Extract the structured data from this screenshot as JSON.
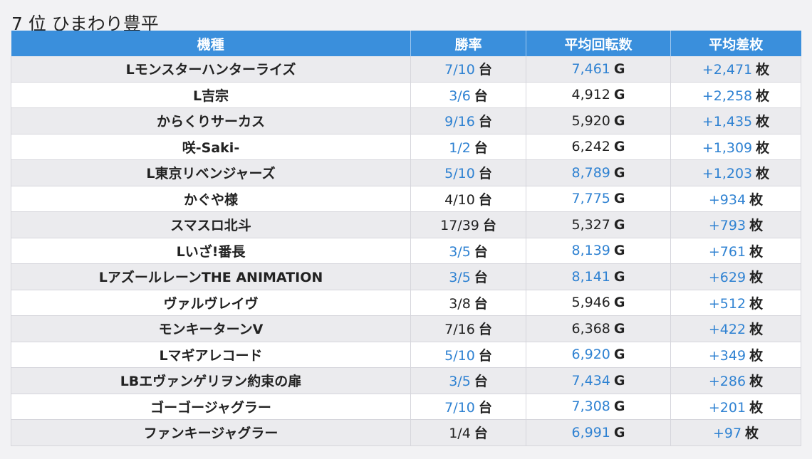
{
  "title": "7 位 ひまわり豊平",
  "headers": {
    "machine": "機種",
    "win_rate": "勝率",
    "avg_spins": "平均回転数",
    "avg_diff": "平均差枚"
  },
  "units": {
    "dai": "台",
    "games": "G",
    "coins": "枚"
  },
  "colors": {
    "header_bg": "#3a8fdc",
    "highlight": "#2f82d2",
    "row_alt": "#ebebee"
  },
  "rows": [
    {
      "machine": "Lモンスターハンターライズ",
      "win_rate": "7/10",
      "win_hi": true,
      "avg_spins": "7,461",
      "spins_hi": true,
      "avg_diff": "+2,471"
    },
    {
      "machine": "L吉宗",
      "win_rate": "3/6",
      "win_hi": true,
      "avg_spins": "4,912",
      "spins_hi": false,
      "avg_diff": "+2,258"
    },
    {
      "machine": "からくりサーカス",
      "win_rate": "9/16",
      "win_hi": true,
      "avg_spins": "5,920",
      "spins_hi": false,
      "avg_diff": "+1,435"
    },
    {
      "machine": "咲-Saki-",
      "win_rate": "1/2",
      "win_hi": true,
      "avg_spins": "6,242",
      "spins_hi": false,
      "avg_diff": "+1,309"
    },
    {
      "machine": "L東京リベンジャーズ",
      "win_rate": "5/10",
      "win_hi": true,
      "avg_spins": "8,789",
      "spins_hi": true,
      "avg_diff": "+1,203"
    },
    {
      "machine": "かぐや様",
      "win_rate": "4/10",
      "win_hi": false,
      "avg_spins": "7,775",
      "spins_hi": true,
      "avg_diff": "+934"
    },
    {
      "machine": "スマスロ北斗",
      "win_rate": "17/39",
      "win_hi": false,
      "avg_spins": "5,327",
      "spins_hi": false,
      "avg_diff": "+793"
    },
    {
      "machine": "Lいざ!番長",
      "win_rate": "3/5",
      "win_hi": true,
      "avg_spins": "8,139",
      "spins_hi": true,
      "avg_diff": "+761"
    },
    {
      "machine": "LアズールレーンTHE ANIMATION",
      "win_rate": "3/5",
      "win_hi": true,
      "avg_spins": "8,141",
      "spins_hi": true,
      "avg_diff": "+629"
    },
    {
      "machine": "ヴァルヴレイヴ",
      "win_rate": "3/8",
      "win_hi": false,
      "avg_spins": "5,946",
      "spins_hi": false,
      "avg_diff": "+512"
    },
    {
      "machine": "モンキーターンV",
      "win_rate": "7/16",
      "win_hi": false,
      "avg_spins": "6,368",
      "spins_hi": false,
      "avg_diff": "+422"
    },
    {
      "machine": "Lマギアレコード",
      "win_rate": "5/10",
      "win_hi": true,
      "avg_spins": "6,920",
      "spins_hi": true,
      "avg_diff": "+349"
    },
    {
      "machine": "LBエヴァンゲリヲン約束の扉",
      "win_rate": "3/5",
      "win_hi": true,
      "avg_spins": "7,434",
      "spins_hi": true,
      "avg_diff": "+286"
    },
    {
      "machine": "ゴーゴージャグラー",
      "win_rate": "7/10",
      "win_hi": true,
      "avg_spins": "7,308",
      "spins_hi": true,
      "avg_diff": "+201"
    },
    {
      "machine": "ファンキージャグラー",
      "win_rate": "1/4",
      "win_hi": false,
      "avg_spins": "6,991",
      "spins_hi": true,
      "avg_diff": "+97"
    }
  ]
}
